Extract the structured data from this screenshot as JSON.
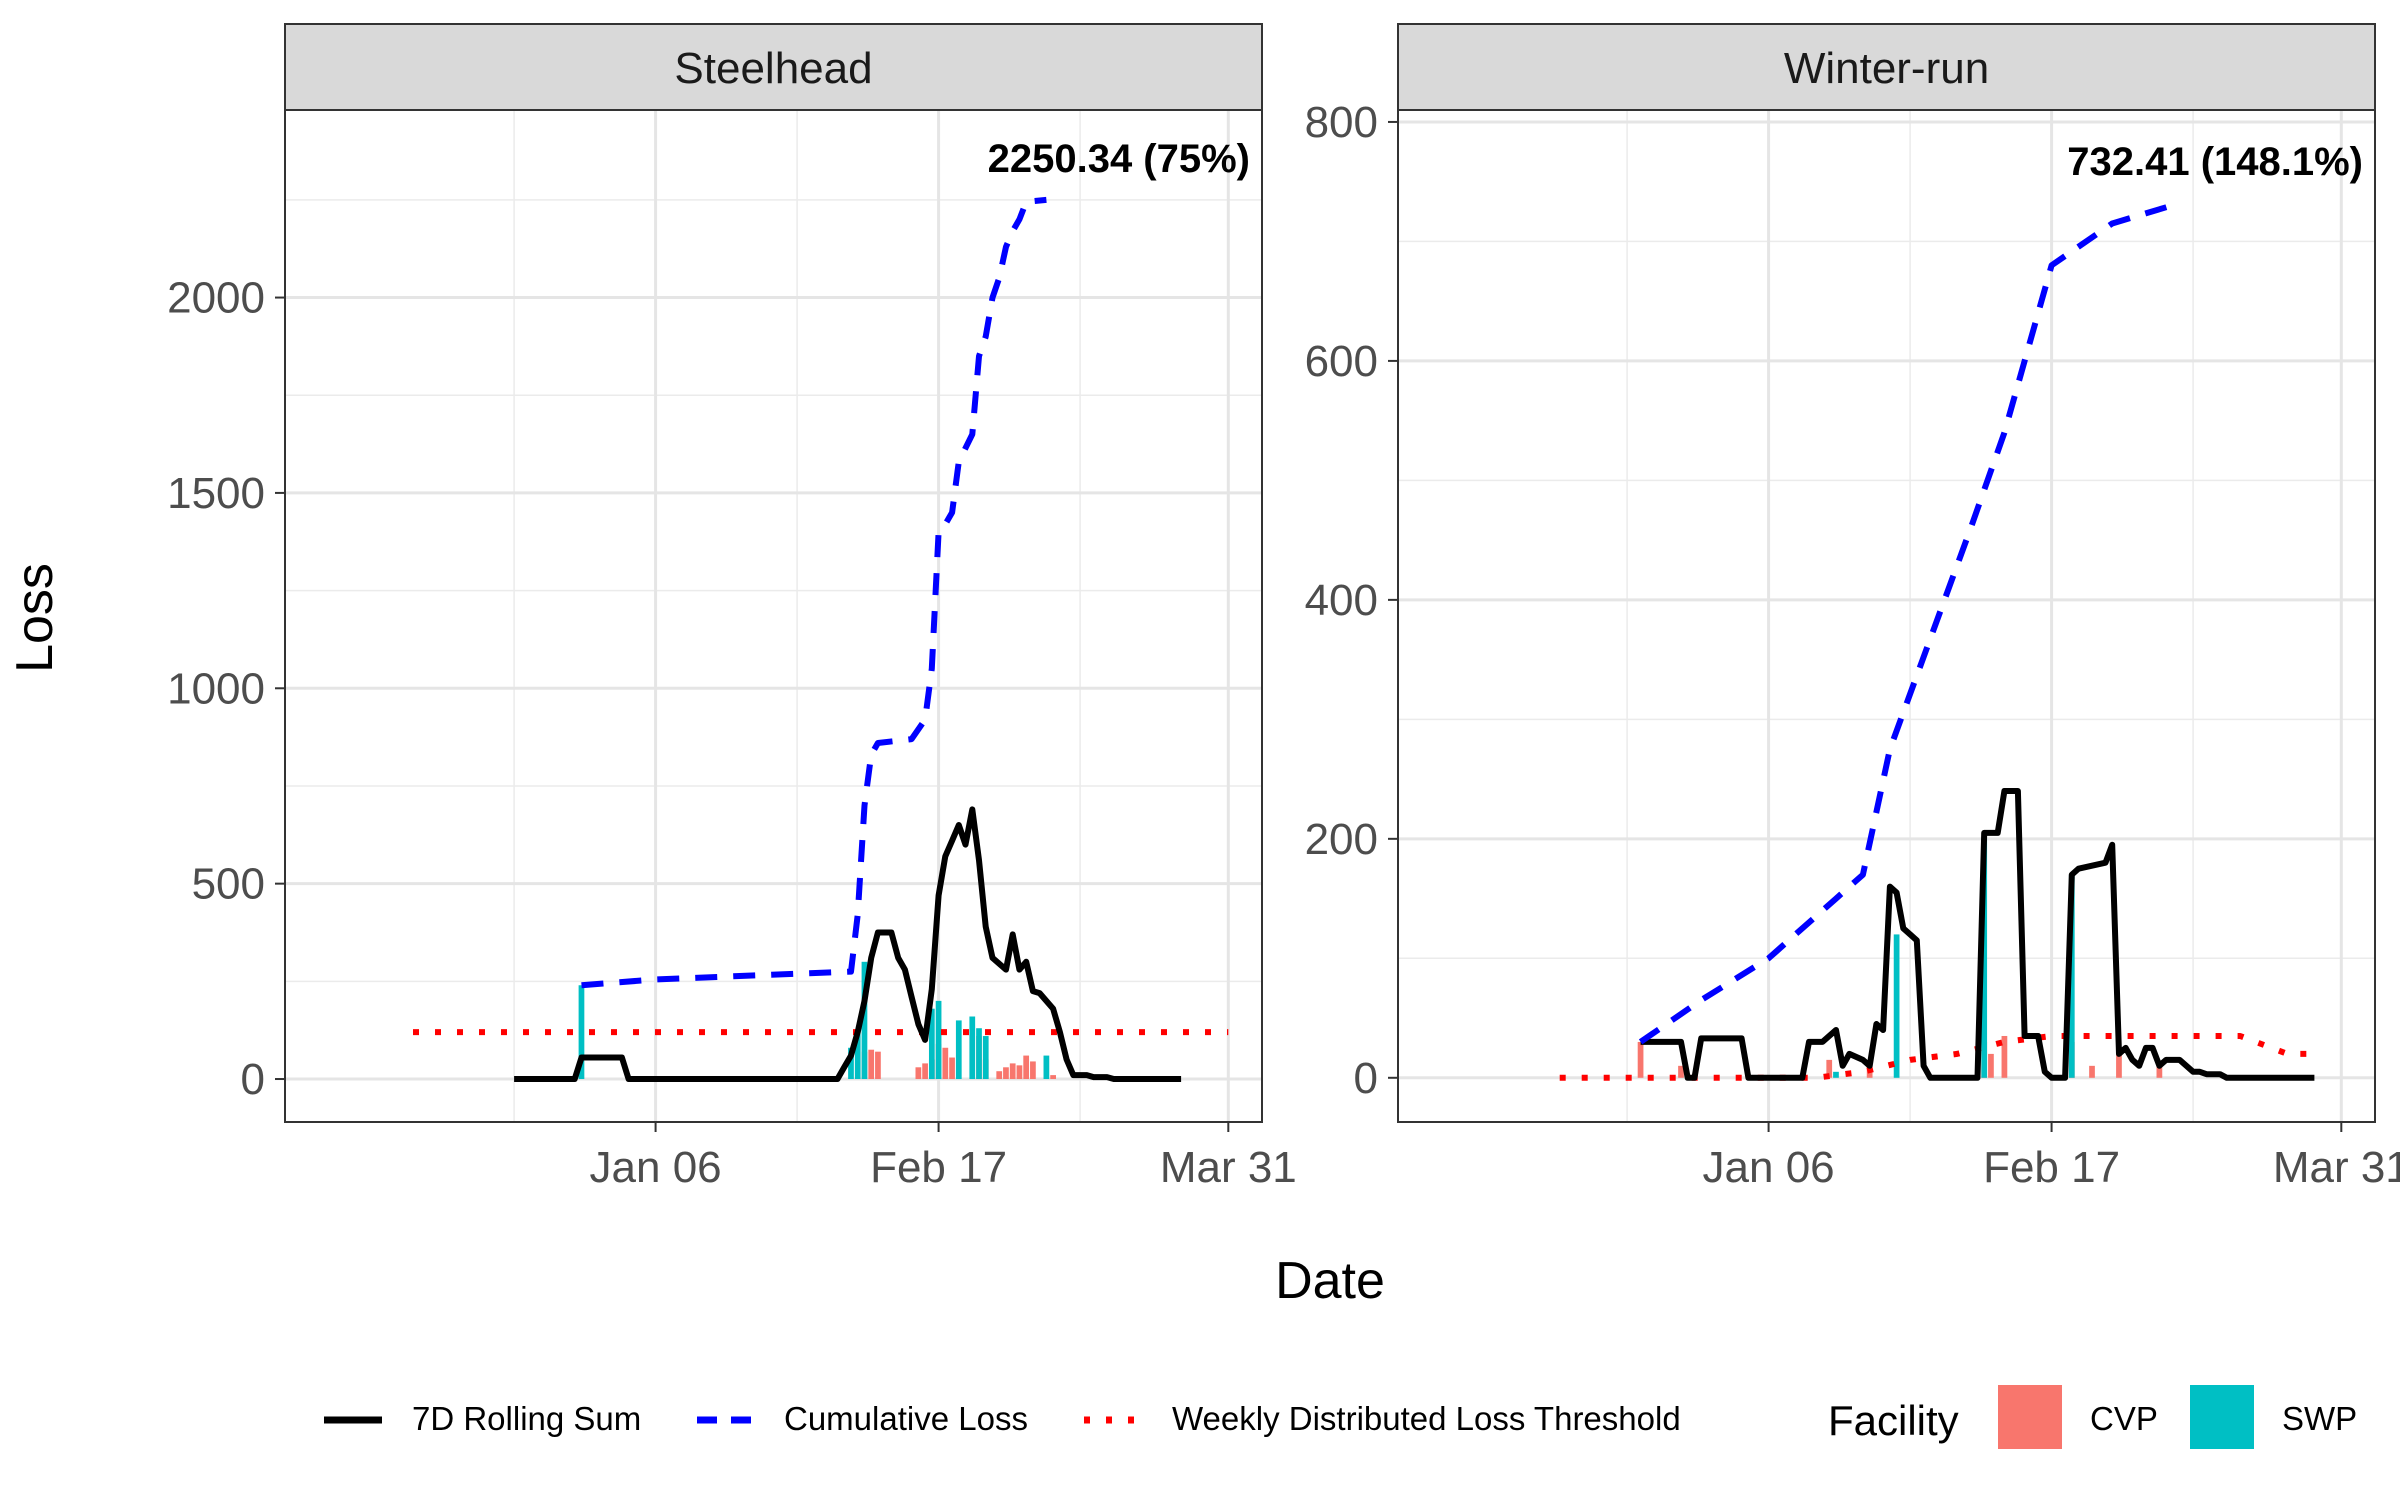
{
  "chart_data": {
    "type": "line",
    "xlabel": "Date",
    "ylabel": "Loss",
    "x_tick_labels": [
      "Jan 06",
      "Feb 17",
      "Mar 31"
    ],
    "panels": [
      {
        "title": "Steelhead",
        "ylim": [
          -110,
          2480
        ],
        "y_ticks": [
          0,
          500,
          1000,
          1500,
          2000
        ],
        "annotation": "2250.34 (75%)",
        "series": [
          {
            "name": "7D Rolling Sum",
            "points": [
              [
                "2019-12-16",
                0
              ],
              [
                "2019-12-25",
                0
              ],
              [
                "2019-12-26",
                55
              ],
              [
                "2020-01-01",
                55
              ],
              [
                "2020-01-02",
                0
              ],
              [
                "2020-02-02",
                0
              ],
              [
                "2020-02-03",
                30
              ],
              [
                "2020-02-04",
                60
              ],
              [
                "2020-02-05",
                120
              ],
              [
                "2020-02-06",
                200
              ],
              [
                "2020-02-07",
                310
              ],
              [
                "2020-02-08",
                375
              ],
              [
                "2020-02-10",
                375
              ],
              [
                "2020-02-11",
                310
              ],
              [
                "2020-02-12",
                280
              ],
              [
                "2020-02-13",
                210
              ],
              [
                "2020-02-14",
                140
              ],
              [
                "2020-02-15",
                100
              ],
              [
                "2020-02-16",
                230
              ],
              [
                "2020-02-17",
                470
              ],
              [
                "2020-02-18",
                570
              ],
              [
                "2020-02-19",
                610
              ],
              [
                "2020-02-20",
                650
              ],
              [
                "2020-02-21",
                600
              ],
              [
                "2020-02-22",
                690
              ],
              [
                "2020-02-23",
                560
              ],
              [
                "2020-02-24",
                390
              ],
              [
                "2020-02-25",
                310
              ],
              [
                "2020-02-27",
                280
              ],
              [
                "2020-02-28",
                370
              ],
              [
                "2020-02-29",
                280
              ],
              [
                "2020-03-01",
                300
              ],
              [
                "2020-03-02",
                225
              ],
              [
                "2020-03-03",
                220
              ],
              [
                "2020-03-05",
                180
              ],
              [
                "2020-03-06",
                120
              ],
              [
                "2020-03-07",
                50
              ],
              [
                "2020-03-08",
                10
              ],
              [
                "2020-03-10",
                10
              ],
              [
                "2020-03-11",
                5
              ],
              [
                "2020-03-13",
                5
              ],
              [
                "2020-03-14",
                0
              ],
              [
                "2020-03-24",
                0
              ]
            ]
          },
          {
            "name": "Cumulative Loss",
            "points": [
              [
                "2019-12-26",
                240
              ],
              [
                "2020-01-06",
                255
              ],
              [
                "2020-02-04",
                275
              ],
              [
                "2020-02-05",
                420
              ],
              [
                "2020-02-06",
                700
              ],
              [
                "2020-02-07",
                830
              ],
              [
                "2020-02-08",
                860
              ],
              [
                "2020-02-13",
                870
              ],
              [
                "2020-02-15",
                920
              ],
              [
                "2020-02-16",
                1050
              ],
              [
                "2020-02-17",
                1400
              ],
              [
                "2020-02-18",
                1420
              ],
              [
                "2020-02-19",
                1450
              ],
              [
                "2020-02-20",
                1580
              ],
              [
                "2020-02-22",
                1650
              ],
              [
                "2020-02-23",
                1850
              ],
              [
                "2020-02-24",
                1900
              ],
              [
                "2020-02-25",
                2000
              ],
              [
                "2020-02-26",
                2050
              ],
              [
                "2020-02-27",
                2130
              ],
              [
                "2020-02-28",
                2170
              ],
              [
                "2020-02-29",
                2200
              ],
              [
                "2020-03-01",
                2245
              ],
              [
                "2020-03-04",
                2250
              ]
            ]
          },
          {
            "name": "Weekly Distributed Loss Threshold",
            "points": [
              [
                "2019-12-01",
                120
              ],
              [
                "2020-03-31",
                120
              ]
            ]
          }
        ],
        "bars": {
          "CVP": [
            [
              "2020-02-06",
              70
            ],
            [
              "2020-02-07",
              75
            ],
            [
              "2020-02-08",
              70
            ],
            [
              "2020-02-14",
              30
            ],
            [
              "2020-02-15",
              40
            ],
            [
              "2020-02-16",
              50
            ],
            [
              "2020-02-17",
              90
            ],
            [
              "2020-02-18",
              80
            ],
            [
              "2020-02-19",
              55
            ],
            [
              "2020-02-23",
              110
            ],
            [
              "2020-02-24",
              50
            ],
            [
              "2020-02-26",
              20
            ],
            [
              "2020-02-27",
              30
            ],
            [
              "2020-02-28",
              40
            ],
            [
              "2020-02-29",
              35
            ],
            [
              "2020-03-01",
              60
            ],
            [
              "2020-03-02",
              45
            ],
            [
              "2020-03-05",
              10
            ]
          ],
          "SWP": [
            [
              "2019-12-26",
              240
            ],
            [
              "2020-02-04",
              80
            ],
            [
              "2020-02-05",
              120
            ],
            [
              "2020-02-06",
              300
            ],
            [
              "2020-02-16",
              180
            ],
            [
              "2020-02-17",
              200
            ],
            [
              "2020-02-20",
              150
            ],
            [
              "2020-02-22",
              160
            ],
            [
              "2020-02-23",
              130
            ],
            [
              "2020-02-24",
              110
            ],
            [
              "2020-03-04",
              60
            ]
          ]
        }
      },
      {
        "title": "Winter-run",
        "ylim": [
          -37,
          810
        ],
        "y_ticks": [
          0,
          200,
          400,
          600,
          800
        ],
        "annotation": "732.41 (148.1%)",
        "series": [
          {
            "name": "7D Rolling Sum",
            "points": [
              [
                "2019-12-18",
                30
              ],
              [
                "2019-12-24",
                30
              ],
              [
                "2019-12-25",
                0
              ],
              [
                "2019-12-26",
                0
              ],
              [
                "2019-12-27",
                33
              ],
              [
                "2020-01-02",
                33
              ],
              [
                "2020-01-03",
                0
              ],
              [
                "2020-01-11",
                0
              ],
              [
                "2020-01-12",
                30
              ],
              [
                "2020-01-14",
                30
              ],
              [
                "2020-01-16",
                40
              ],
              [
                "2020-01-17",
                10
              ],
              [
                "2020-01-18",
                20
              ],
              [
                "2020-01-20",
                15
              ],
              [
                "2020-01-21",
                10
              ],
              [
                "2020-01-22",
                45
              ],
              [
                "2020-01-23",
                40
              ],
              [
                "2020-01-24",
                160
              ],
              [
                "2020-01-25",
                155
              ],
              [
                "2020-01-26",
                125
              ],
              [
                "2020-01-27",
                120
              ],
              [
                "2020-01-28",
                115
              ],
              [
                "2020-01-29",
                10
              ],
              [
                "2020-01-30",
                0
              ],
              [
                "2020-02-06",
                0
              ],
              [
                "2020-02-07",
                205
              ],
              [
                "2020-02-09",
                205
              ],
              [
                "2020-02-10",
                240
              ],
              [
                "2020-02-12",
                240
              ],
              [
                "2020-02-13",
                35
              ],
              [
                "2020-02-15",
                35
              ],
              [
                "2020-02-16",
                5
              ],
              [
                "2020-02-17",
                0
              ],
              [
                "2020-02-19",
                0
              ],
              [
                "2020-02-20",
                170
              ],
              [
                "2020-02-21",
                175
              ],
              [
                "2020-02-25",
                180
              ],
              [
                "2020-02-26",
                195
              ],
              [
                "2020-02-27",
                20
              ],
              [
                "2020-02-28",
                25
              ],
              [
                "2020-02-29",
                15
              ],
              [
                "2020-03-01",
                10
              ],
              [
                "2020-03-02",
                25
              ],
              [
                "2020-03-03",
                25
              ],
              [
                "2020-03-04",
                10
              ],
              [
                "2020-03-05",
                15
              ],
              [
                "2020-03-07",
                15
              ],
              [
                "2020-03-08",
                10
              ],
              [
                "2020-03-09",
                5
              ],
              [
                "2020-03-10",
                5
              ],
              [
                "2020-03-11",
                3
              ],
              [
                "2020-03-13",
                3
              ],
              [
                "2020-03-14",
                0
              ],
              [
                "2020-03-27",
                0
              ]
            ]
          },
          {
            "name": "Cumulative Loss",
            "points": [
              [
                "2019-12-18",
                30
              ],
              [
                "2019-12-27",
                65
              ],
              [
                "2020-01-06",
                100
              ],
              [
                "2020-01-10",
                120
              ],
              [
                "2020-01-16",
                150
              ],
              [
                "2020-01-20",
                170
              ],
              [
                "2020-01-24",
                275
              ],
              [
                "2020-02-05",
                460
              ],
              [
                "2020-02-10",
                540
              ],
              [
                "2020-02-17",
                680
              ],
              [
                "2020-02-26",
                715
              ],
              [
                "2020-03-07",
                732
              ]
            ]
          },
          {
            "name": "Weekly Distributed Loss Threshold",
            "points": [
              [
                "2019-12-06",
                0
              ],
              [
                "2020-01-06",
                0
              ],
              [
                "2020-01-13",
                0
              ],
              [
                "2020-01-20",
                5
              ],
              [
                "2020-01-27",
                15
              ],
              [
                "2020-02-03",
                20
              ],
              [
                "2020-02-10",
                30
              ],
              [
                "2020-02-17",
                35
              ],
              [
                "2020-02-24",
                35
              ],
              [
                "2020-03-02",
                35
              ],
              [
                "2020-03-09",
                35
              ],
              [
                "2020-03-16",
                35
              ],
              [
                "2020-03-23",
                20
              ],
              [
                "2020-03-27",
                20
              ]
            ]
          }
        ],
        "bars": {
          "CVP": [
            [
              "2019-12-18",
              30
            ],
            [
              "2019-12-24",
              10
            ],
            [
              "2020-01-15",
              15
            ],
            [
              "2020-01-21",
              10
            ],
            [
              "2020-02-07",
              30
            ],
            [
              "2020-02-08",
              20
            ],
            [
              "2020-02-10",
              35
            ],
            [
              "2020-02-20",
              30
            ],
            [
              "2020-02-23",
              10
            ],
            [
              "2020-02-27",
              20
            ],
            [
              "2020-03-04",
              10
            ]
          ],
          "SWP": [
            [
              "2020-01-16",
              5
            ],
            [
              "2020-01-25",
              120
            ],
            [
              "2020-02-07",
              200
            ],
            [
              "2020-02-20",
              170
            ]
          ]
        }
      }
    ],
    "legend": {
      "position": "bottom",
      "lines": [
        {
          "label": "7D Rolling Sum",
          "color": "#000000",
          "style": "solid"
        },
        {
          "label": "Cumulative Loss",
          "color": "#0000ff",
          "style": "dashed"
        },
        {
          "label": "Weekly Distributed Loss Threshold",
          "color": "#ff0000",
          "style": "dotted"
        }
      ],
      "fill_title": "Facility",
      "fills": [
        {
          "label": "CVP",
          "color": "#f8766d"
        },
        {
          "label": "SWP",
          "color": "#00bfc4"
        }
      ]
    },
    "grid": true
  }
}
